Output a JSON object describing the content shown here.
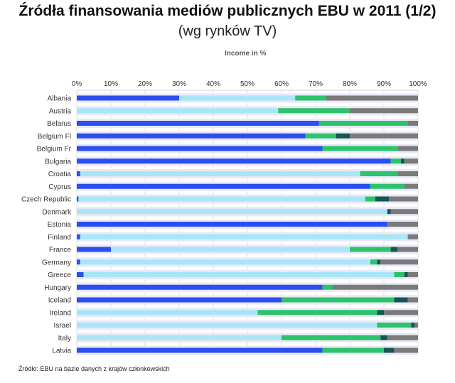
{
  "title": "Źródła finansowania mediów publicznych EBU w 2011  (1/2)",
  "subtitle": "(wg rynków TV)",
  "unit_label": "Income in %",
  "source": "Źródło: EBU na bazie danych z krajów członkowskich",
  "colors": {
    "public_funding_dark": "#2a4ef0",
    "licence_fee_light": "#a8e6f7",
    "commercial_green": "#2cc36a",
    "other_teal": "#17554f",
    "other_gray": "#7a7a7a",
    "row_bg": "#e8e8f8"
  },
  "chart_data": {
    "type": "bar",
    "orientation": "horizontal",
    "stacked": true,
    "xlim": [
      0,
      100
    ],
    "xticks": [
      "0%",
      "10%",
      "20%",
      "30%",
      "40%",
      "50%",
      "60%",
      "70%",
      "80%",
      "90%",
      "100%"
    ],
    "categories": [
      "Albania",
      "Austria",
      "Belarus",
      "Belgium Fl",
      "Belgium Fr",
      "Bulgaria",
      "Croatia",
      "Cyprus",
      "Czech Republic",
      "Denmark",
      "Estonia",
      "Finland",
      "France",
      "Germany",
      "Greece",
      "Hungary",
      "Iceland",
      "Ireland",
      "Israel",
      "Italy",
      "Latvia"
    ],
    "series": [
      {
        "key": "public_funding_dark",
        "values": [
          30,
          0,
          71,
          67,
          72,
          92,
          1,
          86,
          0.5,
          0,
          91,
          1,
          10,
          1,
          2,
          72,
          60,
          0,
          0,
          0,
          72
        ]
      },
      {
        "key": "licence_fee_light",
        "values": [
          34,
          59,
          0,
          0,
          0,
          0,
          82,
          0,
          84,
          91,
          0,
          96,
          70,
          85,
          91,
          0,
          0,
          53,
          88,
          60,
          0
        ]
      },
      {
        "key": "commercial_green",
        "values": [
          9,
          21,
          26,
          9,
          22,
          3,
          11,
          10,
          3,
          0,
          0,
          0,
          12,
          2,
          3,
          3,
          33,
          35,
          10,
          29,
          18
        ]
      },
      {
        "key": "other_teal",
        "values": [
          0,
          0,
          0,
          4,
          0,
          1,
          0,
          0,
          4,
          1,
          0,
          0,
          2,
          1,
          1,
          0,
          4,
          2,
          1,
          2,
          3
        ]
      },
      {
        "key": "other_gray",
        "values": [
          27,
          20,
          3,
          20,
          6,
          4,
          6,
          4,
          8.5,
          8,
          9,
          3,
          6,
          11,
          3,
          25,
          3,
          10,
          1,
          9,
          7
        ]
      }
    ]
  }
}
